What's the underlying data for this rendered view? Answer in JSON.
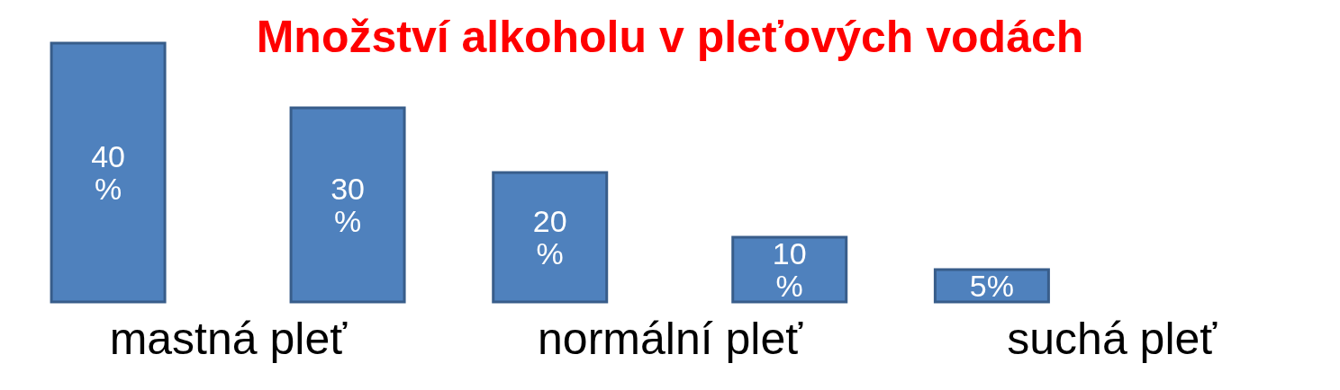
{
  "chart_data": {
    "type": "bar",
    "title": "Množství alkoholu v pleťových vodách",
    "categories": [
      "mastná pleť",
      "normální pleť",
      "suchá pleť"
    ],
    "series": [
      {
        "color": "#4f81bd",
        "values": [
          40,
          20,
          5
        ],
        "value_labels": [
          "40 %",
          "20 %",
          "5%"
        ]
      },
      {
        "color": "#4f81bd",
        "values": [
          30,
          10,
          0
        ],
        "value_labels": [
          "30 %",
          "10 %",
          null
        ]
      }
    ]
  }
}
